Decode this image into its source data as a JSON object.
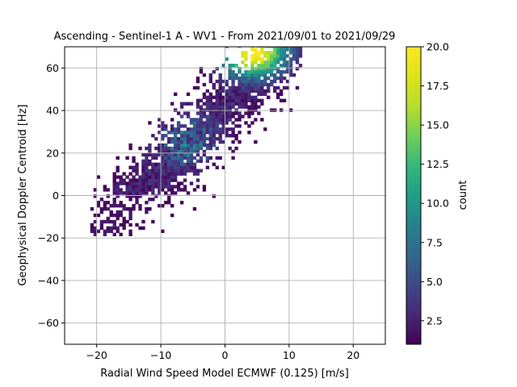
{
  "chart_data": {
    "type": "heatmap",
    "title": "Ascending - Sentinel-1 A - WV1 - From 2021/09/01 to 2021/09/29",
    "xlabel": "Radial Wind Speed Model ECMWF (0.125) [m/s]",
    "ylabel": "Geophysical Doppler Centroid [Hz]",
    "xlim": [
      -25,
      25
    ],
    "ylim": [
      -70,
      70
    ],
    "xticks": [
      -20,
      -10,
      0,
      10,
      20
    ],
    "yticks": [
      -60,
      -40,
      -20,
      0,
      20,
      40,
      60
    ],
    "grid": true,
    "colormap": "viridis",
    "colorbar": {
      "label": "count",
      "range": [
        1,
        20
      ],
      "ticks": [
        2.5,
        5.0,
        7.5,
        10.0,
        12.5,
        15.0,
        17.5,
        20.0
      ],
      "tick_labels": [
        "2.5",
        "5.0",
        "7.5",
        "10.0",
        "12.5",
        "15.0",
        "17.5",
        "20.0"
      ]
    },
    "bin_size": {
      "x": 0.5,
      "y": 1.5
    },
    "density_model": {
      "trend_slope_hz_per_ms": 3.0,
      "trend_intercept_hz": 42,
      "spread_hz": 24,
      "peak_speed_ms": 4,
      "peak_doppler_hz": 66,
      "speed_sigma_ms": 5,
      "doppler_sigma_hz": 10,
      "max_count": 20
    },
    "data_extent": {
      "x_range": [
        -21,
        12
      ],
      "y_range": [
        -19,
        70
      ]
    }
  }
}
